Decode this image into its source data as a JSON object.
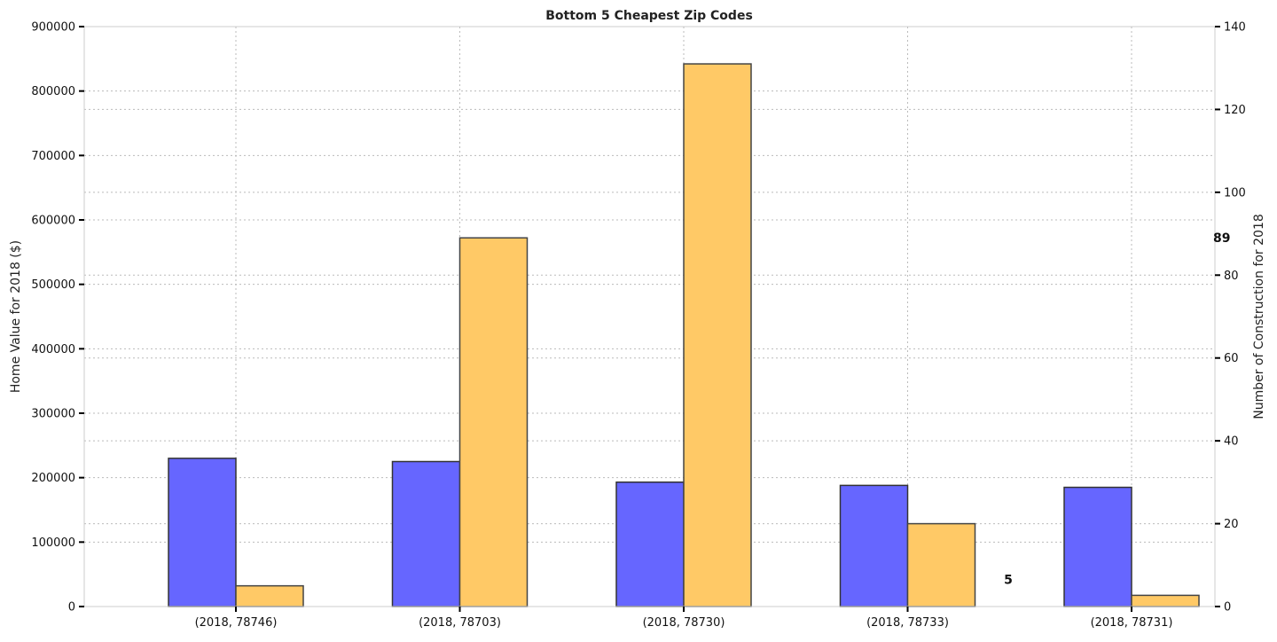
{
  "chart_data": {
    "type": "bar",
    "title": "Bottom 5 Cheapest Zip Codes",
    "xlabel": "",
    "ylabel": "Home Value for 2018 ($)",
    "y2label": "Number of Construction for 2018",
    "categories": [
      "(2018, 78746)",
      "(2018, 78703)",
      "(2018, 78730)",
      "(2018, 78733)",
      "(2018, 78731)"
    ],
    "series": [
      {
        "axis": "left",
        "color": "#6666ff",
        "values": [
          230000,
          225000,
          193000,
          188000,
          185000
        ]
      },
      {
        "axis": "right",
        "color": "#ffc966",
        "values": [
          5,
          89,
          131,
          20,
          2.7
        ]
      }
    ],
    "ylim": [
      0,
      900000
    ],
    "yticks": [
      0,
      100000,
      200000,
      300000,
      400000,
      500000,
      600000,
      700000,
      800000,
      900000
    ],
    "y2lim": [
      0,
      140
    ],
    "y2ticks": [
      0,
      20,
      40,
      60,
      80,
      100,
      120,
      140
    ],
    "annotations": [
      {
        "text": "89",
        "axis": "right",
        "y": 89
      },
      {
        "text": "5",
        "axis": "right",
        "y": 5
      }
    ],
    "grid": true
  }
}
